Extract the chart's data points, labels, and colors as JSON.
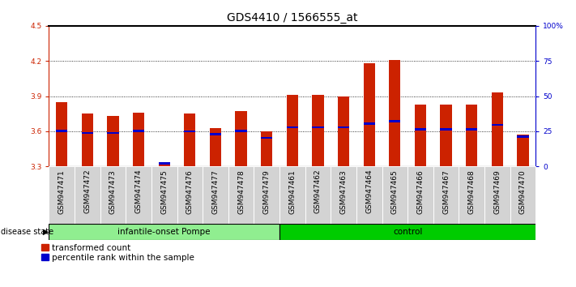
{
  "title": "GDS4410 / 1566555_at",
  "samples": [
    "GSM947471",
    "GSM947472",
    "GSM947473",
    "GSM947474",
    "GSM947475",
    "GSM947476",
    "GSM947477",
    "GSM947478",
    "GSM947479",
    "GSM947461",
    "GSM947462",
    "GSM947463",
    "GSM947464",
    "GSM947465",
    "GSM947466",
    "GSM947467",
    "GSM947468",
    "GSM947469",
    "GSM947470"
  ],
  "red_values": [
    3.85,
    3.75,
    3.73,
    3.76,
    3.32,
    3.75,
    3.63,
    3.77,
    3.6,
    3.91,
    3.91,
    3.9,
    4.18,
    4.21,
    3.83,
    3.83,
    3.83,
    3.93,
    3.57
  ],
  "blue_values": [
    3.605,
    3.585,
    3.585,
    3.605,
    3.325,
    3.6,
    3.575,
    3.605,
    3.545,
    3.635,
    3.635,
    3.635,
    3.665,
    3.685,
    3.615,
    3.615,
    3.615,
    3.655,
    3.555
  ],
  "ymin": 3.3,
  "ymax": 4.5,
  "yticks": [
    3.3,
    3.6,
    3.9,
    4.2,
    4.5
  ],
  "right_yticks": [
    0,
    25,
    50,
    75,
    100
  ],
  "right_yticklabels": [
    "0",
    "25",
    "50",
    "75",
    "100%"
  ],
  "bar_color": "#cc2200",
  "blue_color": "#0000cc",
  "title_fontsize": 10,
  "tick_fontsize": 6.5,
  "group1_color": "#90ee90",
  "group2_color": "#00cc00",
  "group1_label": "infantile-onset Pompe",
  "group2_label": "control",
  "group1_count": 9,
  "group2_count": 10,
  "disease_state_label": "disease state",
  "legend1": "transformed count",
  "legend2": "percentile rank within the sample"
}
